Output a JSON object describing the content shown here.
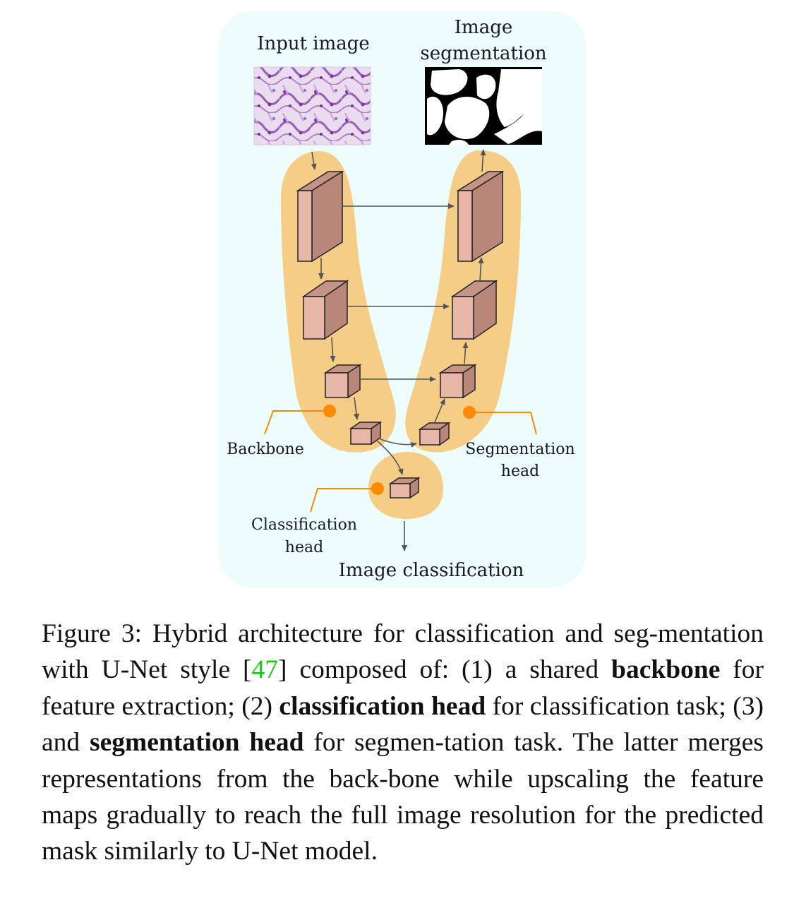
{
  "figure": {
    "labels": {
      "input_image": "Input image",
      "segmentation_line1": "Image",
      "segmentation_line2": "segmentation",
      "backbone": "Backbone",
      "seg_head_line1": "Segmentation",
      "seg_head_line2": "head",
      "cls_head_line1": "Classification",
      "cls_head_line2": "head",
      "image_classification": "Image classification"
    },
    "colors": {
      "panel_bg": "#ecfdfb",
      "blob": "#f6cd86",
      "dot_line": "#ff8a00",
      "block_front": "#e6b7a6",
      "block_side": "#b9877a",
      "arrow": "#555555"
    }
  },
  "caption": {
    "prefix": "Figure 3:",
    "part1": "Hybrid architecture for classification and seg-mentation with U-Net style [",
    "cite": "47",
    "part2": "] composed of: (1) a shared ",
    "bold1": "backbone",
    "part3": " for feature extraction; (2) ",
    "bold2": "classification head",
    "part4": " for classification task; (3) and ",
    "bold3": "segmentation head",
    "part5": " for segmen-tation task. The latter merges representations from the back-bone while upscaling the feature maps gradually to reach the full image resolution for the predicted mask similarly to U-Net model."
  }
}
